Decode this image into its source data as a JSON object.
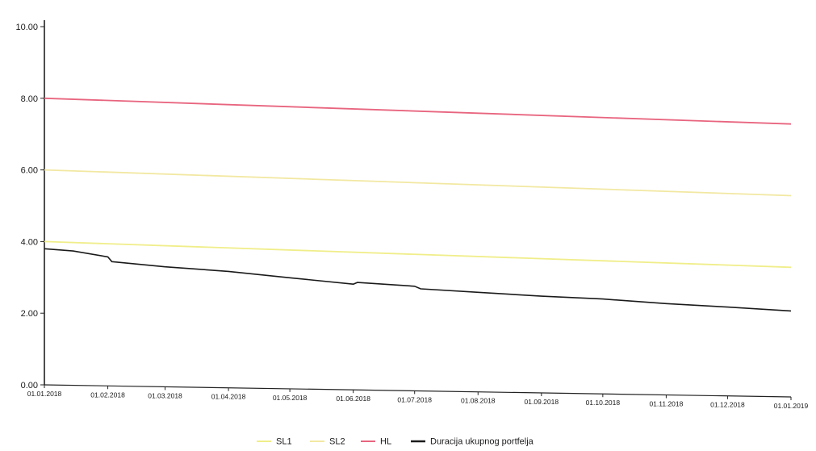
{
  "chart_data": {
    "type": "line",
    "title": "",
    "xlabel": "",
    "ylabel": "",
    "ylim": [
      0,
      10
    ],
    "y_ticks": [
      "0.00",
      "2.00",
      "4.00",
      "6.00",
      "8.00",
      "10.00"
    ],
    "x_ticks": [
      "01.01.2018",
      "01.02.2018",
      "01.03.2018",
      "01.04.2018",
      "01.05.2018",
      "01.06.2018",
      "01.07.2018",
      "01.08.2018",
      "01.09.2018",
      "01.10.2018",
      "01.11.2018",
      "01.12.2018",
      "01.01.2019"
    ],
    "grid": false,
    "legend_position": "bottom-center",
    "series": [
      {
        "name": "SL1",
        "color": "#f0ee8a",
        "x": [
          "01.01.2018",
          "01.01.2019"
        ],
        "y": [
          4.0,
          3.62
        ]
      },
      {
        "name": "SL2",
        "color": "#f2e8a2",
        "x": [
          "01.01.2018",
          "01.01.2019"
        ],
        "y": [
          6.0,
          5.62
        ]
      },
      {
        "name": "HL",
        "color": "#e8657f",
        "x": [
          "01.01.2018",
          "01.01.2019"
        ],
        "y": [
          8.0,
          7.62
        ]
      },
      {
        "name": "Duracija ukupnog portfelja",
        "color": "#1a1a1a",
        "x": [
          "01.01.2018",
          "15.01.2018",
          "01.02.2018",
          "03.02.2018",
          "01.03.2018",
          "01.04.2018",
          "01.05.2018",
          "01.06.2018",
          "03.06.2018",
          "01.07.2018",
          "04.07.2018",
          "01.08.2018",
          "01.09.2018",
          "01.10.2018",
          "01.11.2018",
          "01.12.2018",
          "01.01.2019"
        ],
        "y": [
          3.8,
          3.75,
          3.6,
          3.47,
          3.35,
          3.25,
          3.1,
          2.95,
          3.0,
          2.92,
          2.85,
          2.78,
          2.7,
          2.65,
          2.55,
          2.48,
          2.4
        ]
      }
    ]
  }
}
